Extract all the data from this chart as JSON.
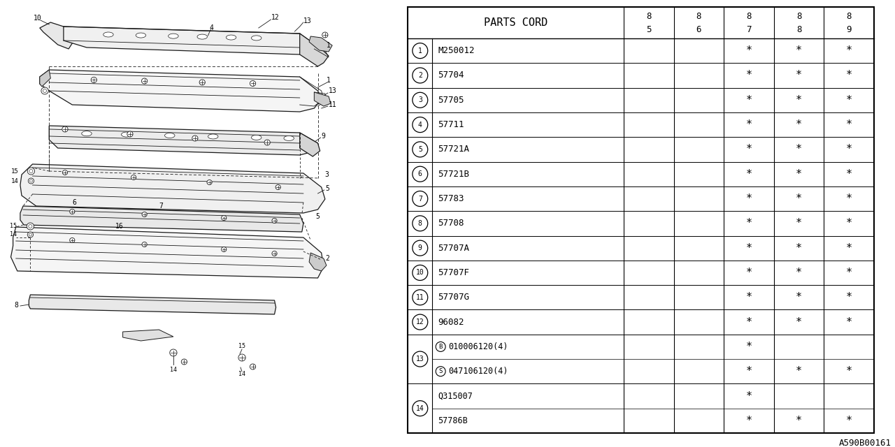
{
  "watermark": "A590B00161",
  "table_header": "PARTS CORD",
  "col_headers": [
    [
      "8",
      "5"
    ],
    [
      "8",
      "6"
    ],
    [
      "8",
      "7"
    ],
    [
      "8",
      "8"
    ],
    [
      "8",
      "9"
    ]
  ],
  "rows": [
    {
      "num": "1",
      "circle": true,
      "part": "M250012",
      "85": false,
      "86": false,
      "87": true,
      "88": true,
      "89": true,
      "sub_marker": ""
    },
    {
      "num": "2",
      "circle": true,
      "part": "57704",
      "85": false,
      "86": false,
      "87": true,
      "88": true,
      "89": true,
      "sub_marker": ""
    },
    {
      "num": "3",
      "circle": true,
      "part": "57705",
      "85": false,
      "86": false,
      "87": true,
      "88": true,
      "89": true,
      "sub_marker": ""
    },
    {
      "num": "4",
      "circle": true,
      "part": "57711",
      "85": false,
      "86": false,
      "87": true,
      "88": true,
      "89": true,
      "sub_marker": ""
    },
    {
      "num": "5",
      "circle": true,
      "part": "57721A",
      "85": false,
      "86": false,
      "87": true,
      "88": true,
      "89": true,
      "sub_marker": ""
    },
    {
      "num": "6",
      "circle": true,
      "part": "57721B",
      "85": false,
      "86": false,
      "87": true,
      "88": true,
      "89": true,
      "sub_marker": ""
    },
    {
      "num": "7",
      "circle": true,
      "part": "57783",
      "85": false,
      "86": false,
      "87": true,
      "88": true,
      "89": true,
      "sub_marker": ""
    },
    {
      "num": "8",
      "circle": true,
      "part": "57708",
      "85": false,
      "86": false,
      "87": true,
      "88": true,
      "89": true,
      "sub_marker": ""
    },
    {
      "num": "9",
      "circle": true,
      "part": "57707A",
      "85": false,
      "86": false,
      "87": true,
      "88": true,
      "89": true,
      "sub_marker": ""
    },
    {
      "num": "10",
      "circle": true,
      "part": "57707F",
      "85": false,
      "86": false,
      "87": true,
      "88": true,
      "89": true,
      "sub_marker": ""
    },
    {
      "num": "11",
      "circle": true,
      "part": "57707G",
      "85": false,
      "86": false,
      "87": true,
      "88": true,
      "89": true,
      "sub_marker": ""
    },
    {
      "num": "12",
      "circle": true,
      "part": "96082",
      "85": false,
      "86": false,
      "87": true,
      "88": true,
      "89": true,
      "sub_marker": ""
    },
    {
      "num": "13",
      "circle": true,
      "part": "010006120(4)",
      "85": false,
      "86": false,
      "87": true,
      "88": false,
      "89": false,
      "sub_marker": "B",
      "sub2_num": "13",
      "sub2_part": "047106120(4)",
      "sub2_marker": "S",
      "sub2_85": false,
      "sub2_86": false,
      "sub2_87": true,
      "sub2_88": true,
      "sub2_89": true
    },
    {
      "num": "14",
      "circle": true,
      "part": "Q315007",
      "85": false,
      "86": false,
      "87": true,
      "88": false,
      "89": false,
      "sub_marker": "",
      "sub2_num": "14",
      "sub2_part": "57786B",
      "sub2_marker": "",
      "sub2_85": false,
      "sub2_86": false,
      "sub2_87": true,
      "sub2_88": true,
      "sub2_89": true
    }
  ],
  "bg_color": "#ffffff",
  "line_color": "#000000"
}
